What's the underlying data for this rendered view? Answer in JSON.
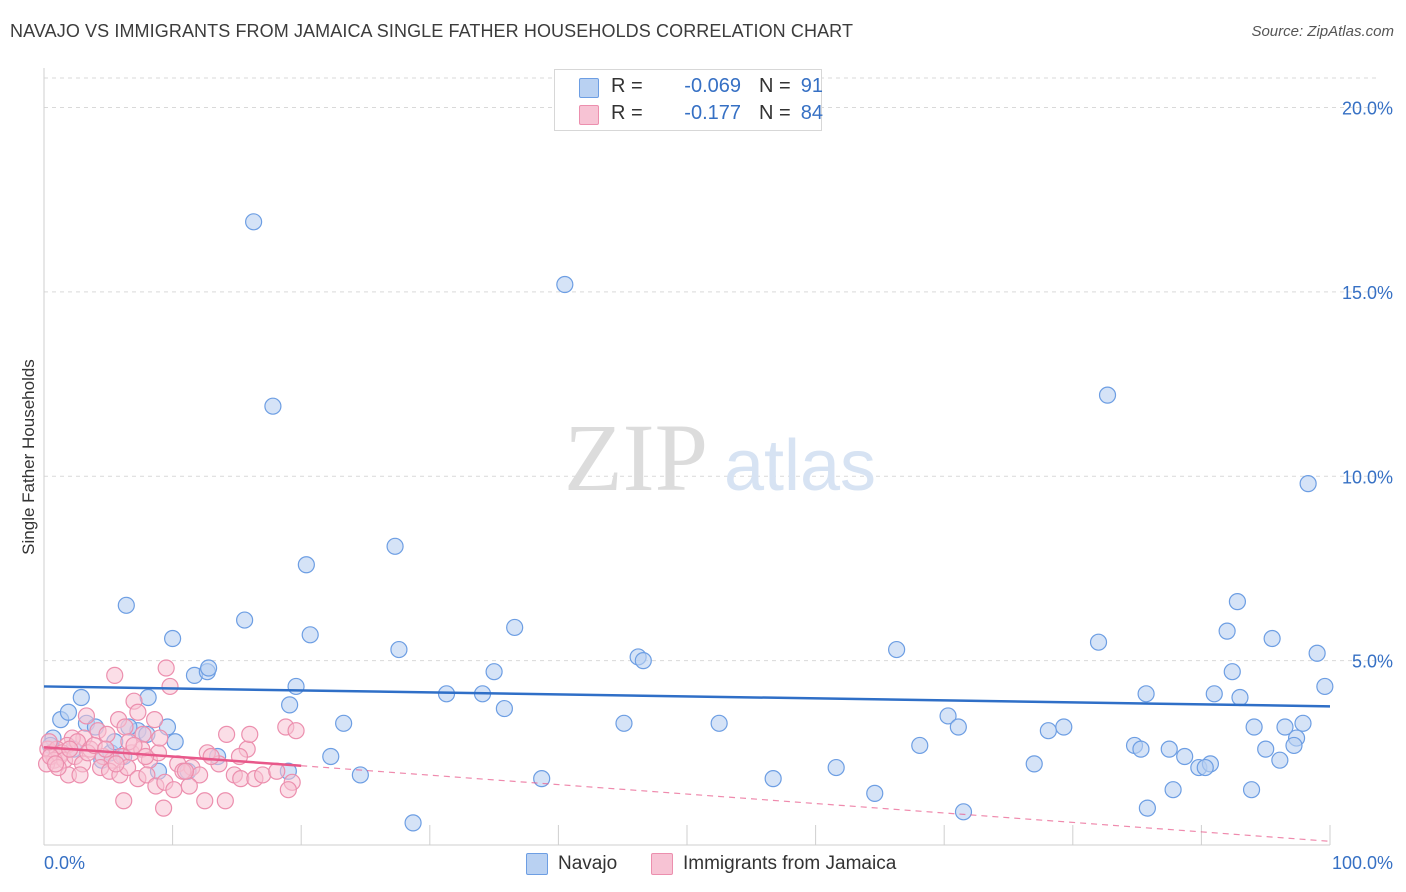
{
  "title": "NAVAJO VS IMMIGRANTS FROM JAMAICA SINGLE FATHER HOUSEHOLDS CORRELATION CHART",
  "source": "Source: ZipAtlas.com",
  "watermark": {
    "zip": "ZIP",
    "atlas": "atlas"
  },
  "legend": {
    "r_label": "R =",
    "n_label": "N =",
    "rows": [
      {
        "name": "Navajo",
        "r": "-0.069",
        "n": "91"
      },
      {
        "name": "Immigrants from Jamaica",
        "r": "-0.177",
        "n": "84"
      }
    ]
  },
  "colors": {
    "navajo_fill": "#b9d1f2",
    "navajo_stroke": "#6d9ee3",
    "navajo_line": "#2f6fc7",
    "jamaica_fill": "#f7c3d4",
    "jamaica_stroke": "#ec8fae",
    "jamaica_line": "#e8588a",
    "axis_text": "#3670c4",
    "grid": "#d9d9d9"
  },
  "chart_data": {
    "type": "scatter",
    "title": "NAVAJO VS IMMIGRANTS FROM JAMAICA SINGLE FATHER HOUSEHOLDS CORRELATION CHART",
    "xlabel": "",
    "ylabel": "Single Father Households",
    "xlim": [
      0,
      100
    ],
    "ylim": [
      0,
      20.8
    ],
    "y_ticks": [
      5,
      10,
      15,
      20
    ],
    "y_tick_labels": [
      "5.0%",
      "10.0%",
      "15.0%",
      "20.0%"
    ],
    "x_tick_labels": [
      "0.0%",
      "100.0%"
    ],
    "series": [
      {
        "name": "Navajo",
        "trend": {
          "x": [
            0,
            100
          ],
          "y": [
            4.3,
            3.76
          ]
        },
        "points": [
          {
            "x": 16.3,
            "y": 16.9
          },
          {
            "x": 40.5,
            "y": 15.2
          },
          {
            "x": 17.8,
            "y": 11.9
          },
          {
            "x": 82.7,
            "y": 12.2
          },
          {
            "x": 98.3,
            "y": 9.8
          },
          {
            "x": 27.3,
            "y": 8.1
          },
          {
            "x": 20.4,
            "y": 7.6
          },
          {
            "x": 6.4,
            "y": 6.5
          },
          {
            "x": 15.6,
            "y": 6.1
          },
          {
            "x": 92.8,
            "y": 6.6
          },
          {
            "x": 10.0,
            "y": 5.6
          },
          {
            "x": 20.7,
            "y": 5.7
          },
          {
            "x": 27.6,
            "y": 5.3
          },
          {
            "x": 36.6,
            "y": 5.9
          },
          {
            "x": 46.2,
            "y": 5.1
          },
          {
            "x": 46.6,
            "y": 5.0
          },
          {
            "x": 66.3,
            "y": 5.3
          },
          {
            "x": 82.0,
            "y": 5.5
          },
          {
            "x": 92.0,
            "y": 5.8
          },
          {
            "x": 95.5,
            "y": 5.6
          },
          {
            "x": 99.0,
            "y": 5.2
          },
          {
            "x": 11.7,
            "y": 4.6
          },
          {
            "x": 12.7,
            "y": 4.7
          },
          {
            "x": 12.8,
            "y": 4.8
          },
          {
            "x": 35.0,
            "y": 4.7
          },
          {
            "x": 19.6,
            "y": 4.3
          },
          {
            "x": 31.3,
            "y": 4.1
          },
          {
            "x": 34.1,
            "y": 4.1
          },
          {
            "x": 92.4,
            "y": 4.7
          },
          {
            "x": 2.9,
            "y": 4.0
          },
          {
            "x": 8.1,
            "y": 4.0
          },
          {
            "x": 19.1,
            "y": 3.8
          },
          {
            "x": 35.8,
            "y": 3.7
          },
          {
            "x": 85.7,
            "y": 4.1
          },
          {
            "x": 91.0,
            "y": 4.1
          },
          {
            "x": 93.0,
            "y": 4.0
          },
          {
            "x": 99.6,
            "y": 4.3
          },
          {
            "x": 1.3,
            "y": 3.4
          },
          {
            "x": 1.9,
            "y": 3.6
          },
          {
            "x": 3.3,
            "y": 3.3
          },
          {
            "x": 4.0,
            "y": 3.2
          },
          {
            "x": 7.3,
            "y": 3.1
          },
          {
            "x": 9.6,
            "y": 3.2
          },
          {
            "x": 23.3,
            "y": 3.3
          },
          {
            "x": 45.1,
            "y": 3.3
          },
          {
            "x": 52.5,
            "y": 3.3
          },
          {
            "x": 70.3,
            "y": 3.5
          },
          {
            "x": 71.1,
            "y": 3.2
          },
          {
            "x": 78.1,
            "y": 3.1
          },
          {
            "x": 79.3,
            "y": 3.2
          },
          {
            "x": 94.1,
            "y": 3.2
          },
          {
            "x": 96.5,
            "y": 3.2
          },
          {
            "x": 97.9,
            "y": 3.3
          },
          {
            "x": 0.7,
            "y": 2.9
          },
          {
            "x": 0.5,
            "y": 2.7
          },
          {
            "x": 2.3,
            "y": 2.6
          },
          {
            "x": 4.5,
            "y": 2.3
          },
          {
            "x": 5.2,
            "y": 2.5
          },
          {
            "x": 5.5,
            "y": 2.8
          },
          {
            "x": 10.2,
            "y": 2.8
          },
          {
            "x": 6.2,
            "y": 2.4
          },
          {
            "x": 13.5,
            "y": 2.4
          },
          {
            "x": 22.3,
            "y": 2.4
          },
          {
            "x": 68.1,
            "y": 2.7
          },
          {
            "x": 84.8,
            "y": 2.7
          },
          {
            "x": 85.3,
            "y": 2.6
          },
          {
            "x": 87.5,
            "y": 2.6
          },
          {
            "x": 88.7,
            "y": 2.4
          },
          {
            "x": 95.0,
            "y": 2.6
          },
          {
            "x": 96.1,
            "y": 2.3
          },
          {
            "x": 97.4,
            "y": 2.9
          },
          {
            "x": 97.2,
            "y": 2.7
          },
          {
            "x": 11.2,
            "y": 2.0
          },
          {
            "x": 8.9,
            "y": 2.0
          },
          {
            "x": 19.0,
            "y": 2.0
          },
          {
            "x": 24.6,
            "y": 1.9
          },
          {
            "x": 38.7,
            "y": 1.8
          },
          {
            "x": 56.7,
            "y": 1.8
          },
          {
            "x": 61.6,
            "y": 2.1
          },
          {
            "x": 77.0,
            "y": 2.2
          },
          {
            "x": 89.8,
            "y": 2.1
          },
          {
            "x": 90.7,
            "y": 2.2
          },
          {
            "x": 90.3,
            "y": 2.1
          },
          {
            "x": 64.6,
            "y": 1.4
          },
          {
            "x": 87.8,
            "y": 1.5
          },
          {
            "x": 93.9,
            "y": 1.5
          },
          {
            "x": 71.5,
            "y": 0.9
          },
          {
            "x": 85.8,
            "y": 1.0
          },
          {
            "x": 28.7,
            "y": 0.6
          },
          {
            "x": 6.6,
            "y": 3.2
          },
          {
            "x": 8.0,
            "y": 3.0
          }
        ]
      },
      {
        "name": "Immigrants from Jamaica",
        "trend": {
          "x": [
            0,
            20
          ],
          "y": [
            2.65,
            2.15
          ]
        },
        "trend_extended": {
          "x": [
            20,
            100
          ],
          "y": [
            2.15,
            0.1
          ]
        },
        "points": [
          {
            "x": 9.5,
            "y": 4.8
          },
          {
            "x": 5.5,
            "y": 4.6
          },
          {
            "x": 7.0,
            "y": 3.9
          },
          {
            "x": 9.8,
            "y": 4.3
          },
          {
            "x": 7.3,
            "y": 3.6
          },
          {
            "x": 5.8,
            "y": 3.4
          },
          {
            "x": 8.6,
            "y": 3.4
          },
          {
            "x": 4.2,
            "y": 3.1
          },
          {
            "x": 6.3,
            "y": 3.2
          },
          {
            "x": 3.1,
            "y": 2.9
          },
          {
            "x": 4.9,
            "y": 3.0
          },
          {
            "x": 7.7,
            "y": 3.0
          },
          {
            "x": 18.8,
            "y": 3.2
          },
          {
            "x": 19.6,
            "y": 3.1
          },
          {
            "x": 2.2,
            "y": 2.9
          },
          {
            "x": 1.8,
            "y": 2.7
          },
          {
            "x": 2.6,
            "y": 2.8
          },
          {
            "x": 3.6,
            "y": 2.6
          },
          {
            "x": 0.3,
            "y": 2.6
          },
          {
            "x": 0.6,
            "y": 2.5
          },
          {
            "x": 1.0,
            "y": 2.6
          },
          {
            "x": 1.4,
            "y": 2.5
          },
          {
            "x": 1.2,
            "y": 2.4
          },
          {
            "x": 0.8,
            "y": 2.3
          },
          {
            "x": 0.2,
            "y": 2.2
          },
          {
            "x": 0.5,
            "y": 2.4
          },
          {
            "x": 1.6,
            "y": 2.3
          },
          {
            "x": 2.4,
            "y": 2.4
          },
          {
            "x": 3.0,
            "y": 2.2
          },
          {
            "x": 3.4,
            "y": 2.5
          },
          {
            "x": 4.6,
            "y": 2.4
          },
          {
            "x": 5.3,
            "y": 2.3
          },
          {
            "x": 6.0,
            "y": 2.4
          },
          {
            "x": 6.8,
            "y": 2.5
          },
          {
            "x": 7.6,
            "y": 2.6
          },
          {
            "x": 8.2,
            "y": 2.3
          },
          {
            "x": 8.9,
            "y": 2.5
          },
          {
            "x": 10.4,
            "y": 2.2
          },
          {
            "x": 11.5,
            "y": 2.1
          },
          {
            "x": 12.7,
            "y": 2.5
          },
          {
            "x": 13.6,
            "y": 2.2
          },
          {
            "x": 15.8,
            "y": 2.6
          },
          {
            "x": 14.2,
            "y": 3.0
          },
          {
            "x": 16.0,
            "y": 3.0
          },
          {
            "x": 10.8,
            "y": 2.0
          },
          {
            "x": 12.1,
            "y": 1.9
          },
          {
            "x": 14.8,
            "y": 1.9
          },
          {
            "x": 15.3,
            "y": 1.8
          },
          {
            "x": 16.4,
            "y": 1.8
          },
          {
            "x": 17.0,
            "y": 1.9
          },
          {
            "x": 18.1,
            "y": 2.0
          },
          {
            "x": 19.3,
            "y": 1.7
          },
          {
            "x": 1.9,
            "y": 1.9
          },
          {
            "x": 2.8,
            "y": 1.9
          },
          {
            "x": 4.4,
            "y": 2.1
          },
          {
            "x": 5.1,
            "y": 2.0
          },
          {
            "x": 5.9,
            "y": 1.9
          },
          {
            "x": 6.5,
            "y": 2.1
          },
          {
            "x": 7.3,
            "y": 1.8
          },
          {
            "x": 8.0,
            "y": 1.9
          },
          {
            "x": 8.7,
            "y": 1.6
          },
          {
            "x": 9.4,
            "y": 1.7
          },
          {
            "x": 10.1,
            "y": 1.5
          },
          {
            "x": 11.3,
            "y": 1.6
          },
          {
            "x": 12.5,
            "y": 1.2
          },
          {
            "x": 14.1,
            "y": 1.2
          },
          {
            "x": 9.3,
            "y": 1.0
          },
          {
            "x": 6.2,
            "y": 1.2
          },
          {
            "x": 0.4,
            "y": 2.8
          },
          {
            "x": 1.1,
            "y": 2.1
          },
          {
            "x": 3.9,
            "y": 2.7
          },
          {
            "x": 4.8,
            "y": 2.6
          },
          {
            "x": 6.6,
            "y": 2.8
          },
          {
            "x": 7.9,
            "y": 2.4
          },
          {
            "x": 11.0,
            "y": 2.0
          },
          {
            "x": 13.0,
            "y": 2.4
          },
          {
            "x": 2.0,
            "y": 2.6
          },
          {
            "x": 3.3,
            "y": 3.5
          },
          {
            "x": 5.6,
            "y": 2.2
          },
          {
            "x": 9.0,
            "y": 2.9
          },
          {
            "x": 15.2,
            "y": 2.4
          },
          {
            "x": 19.0,
            "y": 1.5
          },
          {
            "x": 0.9,
            "y": 2.2
          },
          {
            "x": 7.0,
            "y": 2.7
          }
        ]
      }
    ]
  }
}
